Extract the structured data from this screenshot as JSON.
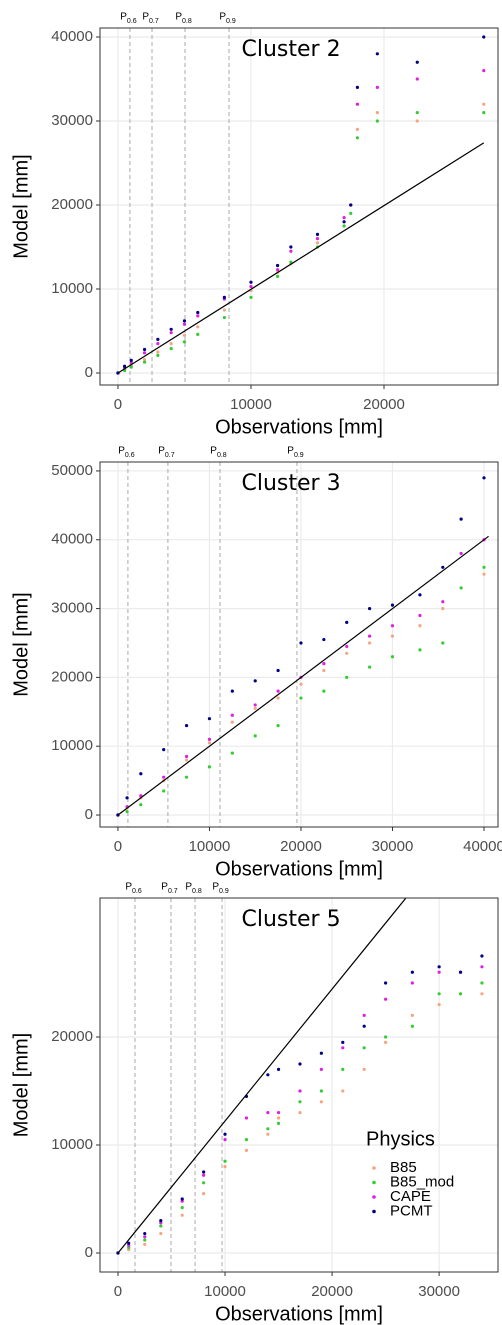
{
  "chart_data": [
    {
      "type": "scatter",
      "title": "Cluster 2",
      "xlabel": "Observations [mm]",
      "ylabel": "Model [mm]",
      "xlim": [
        -1350,
        28570
      ],
      "ylim": [
        -1430,
        41070
      ],
      "xticks": [
        0,
        10000,
        20000
      ],
      "yticks": [
        0,
        10000,
        20000,
        30000,
        40000
      ],
      "grid": true,
      "percentile_prefix": "P",
      "percentiles": [
        {
          "label": "0.6",
          "value": 900
        },
        {
          "label": "0.7",
          "value": 2560
        },
        {
          "label": "0.8",
          "value": 5040
        },
        {
          "label": "0.9",
          "value": 8350
        }
      ],
      "reference_line": {
        "x": [
          0,
          27500
        ],
        "y": [
          0,
          27400
        ],
        "color": "#000000"
      },
      "x": [
        0,
        500,
        1000,
        2000,
        3000,
        4000,
        5000,
        6000,
        8000,
        10000,
        12000,
        13000,
        15000,
        17000,
        17500,
        18000,
        19500,
        22500,
        27500
      ],
      "series": [
        {
          "name": "B85",
          "color": "#f4a582",
          "values": [
            0,
            400,
            900,
            1600,
            2500,
            3500,
            4500,
            5500,
            7500,
            9800,
            12000,
            13000,
            15500,
            18000,
            20000,
            29000,
            31000,
            30000,
            32000
          ]
        },
        {
          "name": "B85_mod",
          "color": "#33cc33",
          "values": [
            0,
            300,
            700,
            1300,
            2100,
            2900,
            3700,
            4600,
            6600,
            9000,
            11500,
            13200,
            15000,
            17500,
            19000,
            28000,
            30000,
            31000,
            31000
          ]
        },
        {
          "name": "CAPE",
          "color": "#e020e0",
          "values": [
            0,
            600,
            1200,
            2400,
            3500,
            4800,
            5800,
            6800,
            8800,
            10300,
            12300,
            14500,
            16000,
            18500,
            20000,
            32000,
            34000,
            35000,
            36000
          ]
        },
        {
          "name": "PCMT",
          "color": "#000080",
          "values": [
            0,
            800,
            1500,
            2800,
            4000,
            5200,
            6200,
            7200,
            9000,
            10800,
            12800,
            15000,
            16500,
            18000,
            20000,
            34000,
            38000,
            37000,
            40000
          ]
        }
      ]
    },
    {
      "type": "scatter",
      "title": "Cluster 3",
      "xlabel": "Observations [mm]",
      "ylabel": "Model [mm]",
      "xlim": [
        -1960,
        41530
      ],
      "ylim": [
        -1740,
        51300
      ],
      "xticks": [
        0,
        10000,
        20000,
        30000,
        40000
      ],
      "yticks": [
        0,
        10000,
        20000,
        30000,
        40000,
        50000
      ],
      "grid": true,
      "percentile_prefix": "P",
      "percentiles": [
        {
          "label": "0.6",
          "value": 1090
        },
        {
          "label": "0.7",
          "value": 5460
        },
        {
          "label": "0.8",
          "value": 11150
        },
        {
          "label": "0.9",
          "value": 19560
        }
      ],
      "reference_line": {
        "x": [
          0,
          40500
        ],
        "y": [
          0,
          40500
        ],
        "color": "#000000"
      },
      "x": [
        0,
        1000,
        2500,
        5000,
        7500,
        10000,
        12500,
        15000,
        17500,
        20000,
        22500,
        25000,
        27500,
        30000,
        33000,
        35500,
        37500,
        40000
      ],
      "series": [
        {
          "name": "B85",
          "color": "#f4a582",
          "values": [
            0,
            1000,
            2500,
            5000,
            8000,
            10500,
            13500,
            15500,
            17000,
            19000,
            21000,
            23500,
            25000,
            26000,
            27500,
            30000,
            33000,
            35000
          ]
        },
        {
          "name": "B85_mod",
          "color": "#33cc33",
          "values": [
            0,
            500,
            1500,
            3500,
            5500,
            7000,
            9000,
            11500,
            13000,
            17000,
            18000,
            20000,
            21500,
            23000,
            24000,
            25000,
            33000,
            36000
          ]
        },
        {
          "name": "CAPE",
          "color": "#e020e0",
          "values": [
            0,
            1200,
            2800,
            5500,
            8500,
            11000,
            14500,
            16000,
            18000,
            20000,
            22000,
            24500,
            26000,
            27500,
            29000,
            31000,
            38000,
            40000
          ]
        },
        {
          "name": "PCMT",
          "color": "#000080",
          "values": [
            0,
            2500,
            6000,
            9500,
            13000,
            14000,
            18000,
            19500,
            21000,
            25000,
            25500,
            28000,
            30000,
            30500,
            32000,
            36000,
            43000,
            49000
          ]
        }
      ]
    },
    {
      "type": "scatter",
      "title": "Cluster 5",
      "xlabel": "Observations [mm]",
      "ylabel": "Model [mm]",
      "xlim": [
        -1680,
        35500
      ],
      "ylim": [
        -1760,
        32870
      ],
      "xticks": [
        0,
        10000,
        20000,
        30000
      ],
      "yticks": [
        0,
        10000,
        20000
      ],
      "grid": true,
      "percentile_prefix": "P",
      "percentiles": [
        {
          "label": "0.6",
          "value": 1590
        },
        {
          "label": "0.7",
          "value": 4950
        },
        {
          "label": "0.8",
          "value": 7200
        },
        {
          "label": "0.9",
          "value": 9720
        }
      ],
      "reference_line": {
        "x": [
          0,
          26900
        ],
        "y": [
          0,
          32870
        ],
        "color": "#000000"
      },
      "legend_title": "Physics",
      "legend": "bottom-right",
      "x": [
        0,
        1000,
        2500,
        4000,
        6000,
        8000,
        10000,
        12000,
        14000,
        15000,
        17000,
        19000,
        21000,
        23000,
        25000,
        27500,
        30000,
        32000,
        34000
      ],
      "series": [
        {
          "name": "B85",
          "color": "#f4a582",
          "values": [
            0,
            300,
            800,
            1800,
            3500,
            5500,
            8000,
            9500,
            11000,
            12500,
            13000,
            14000,
            15000,
            17000,
            19500,
            22000,
            23000,
            24000,
            24000
          ]
        },
        {
          "name": "B85_mod",
          "color": "#33cc33",
          "values": [
            0,
            500,
            1200,
            2500,
            4200,
            6500,
            8500,
            10500,
            11500,
            12000,
            14000,
            15000,
            17000,
            19000,
            20000,
            21000,
            24000,
            24000,
            25000
          ]
        },
        {
          "name": "CAPE",
          "color": "#e020e0",
          "values": [
            0,
            700,
            1500,
            2800,
            4800,
            7200,
            10500,
            12500,
            13000,
            13000,
            15000,
            17000,
            19000,
            22000,
            23500,
            25000,
            26000,
            26000,
            26500
          ]
        },
        {
          "name": "PCMT",
          "color": "#000080",
          "values": [
            0,
            900,
            1800,
            3000,
            5000,
            7500,
            11000,
            14500,
            16500,
            17000,
            17500,
            18500,
            19500,
            21000,
            25000,
            26000,
            26500,
            26000,
            27500
          ]
        }
      ]
    }
  ]
}
